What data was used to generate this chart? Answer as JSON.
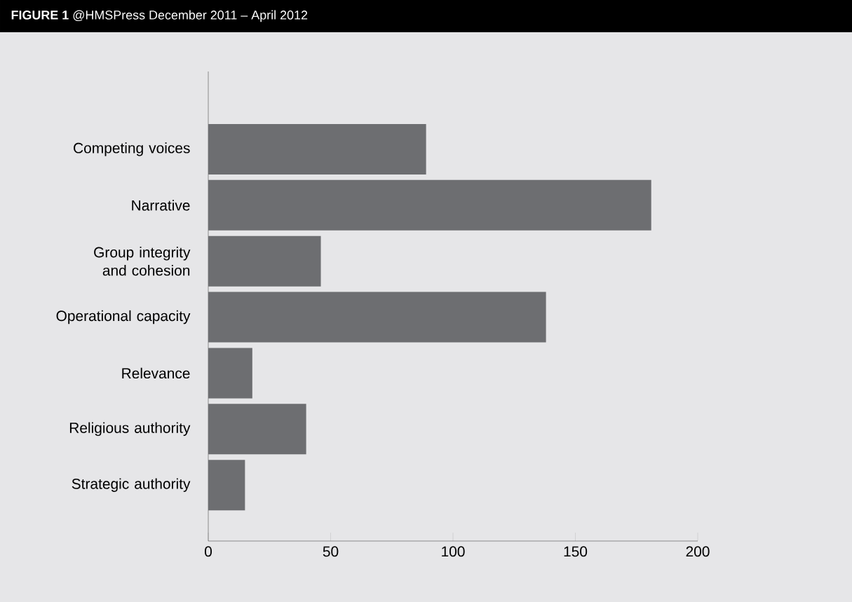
{
  "chart_data": {
    "type": "bar",
    "orientation": "horizontal",
    "title": "**FIGURE 1** @HMSPress December 2011 – April 2012",
    "categories": [
      "Competing voices",
      "Narrative",
      "Group integrity and cohesion",
      "Operational capacity",
      "Relevance",
      "Religious authority",
      "Strategic authority"
    ],
    "values": [
      89,
      181,
      46,
      138,
      18,
      40,
      15
    ],
    "color": "#6d6e71",
    "xlim": [
      0,
      200
    ],
    "xticks": [
      0,
      50,
      100,
      150,
      200
    ],
    "grid": false
  }
}
